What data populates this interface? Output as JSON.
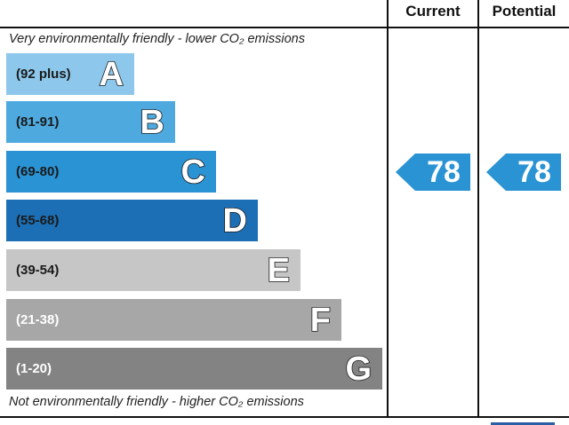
{
  "header": {
    "current_label": "Current",
    "potential_label": "Potential"
  },
  "captions": {
    "top": "Very environmentally friendly - lower CO₂ emissions",
    "bottom": "Not environmentally friendly - higher CO₂ emissions"
  },
  "chart_data": {
    "type": "bar",
    "bands": [
      {
        "letter": "A",
        "range": "(92 plus)",
        "color": "#8dc8ec",
        "text_color": "#1a1a1a"
      },
      {
        "letter": "B",
        "range": "(81-91)",
        "color": "#4ea9df",
        "text_color": "#1a1a1a"
      },
      {
        "letter": "C",
        "range": "(69-80)",
        "color": "#2a93d3",
        "text_color": "#1a1a1a"
      },
      {
        "letter": "D",
        "range": "(55-68)",
        "color": "#1c6fb5",
        "text_color": "#1a1a1a"
      },
      {
        "letter": "E",
        "range": "(39-54)",
        "color": "#c6c6c6",
        "text_color": "#1a1a1a"
      },
      {
        "letter": "F",
        "range": "(21-38)",
        "color": "#a7a7a7",
        "text_color": "#ffffff"
      },
      {
        "letter": "G",
        "range": "(1-20)",
        "color": "#838383",
        "text_color": "#ffffff"
      }
    ],
    "current": {
      "value": 78,
      "band": "C",
      "color": "#2a93d3"
    },
    "potential": {
      "value": 78,
      "band": "C",
      "color": "#2a93d3"
    }
  }
}
